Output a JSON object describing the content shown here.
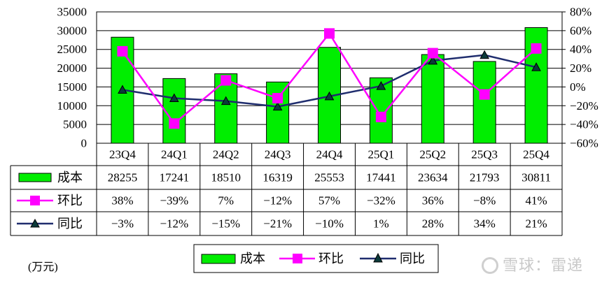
{
  "chart_data": {
    "type": "bar",
    "categories": [
      "23Q4",
      "24Q1",
      "24Q2",
      "24Q3",
      "24Q4",
      "25Q1",
      "25Q2",
      "25Q3",
      "25Q4"
    ],
    "series": [
      {
        "name": "成本",
        "kind": "bar",
        "axis": "left",
        "values": [
          28255,
          17241,
          18510,
          16319,
          25553,
          17441,
          23634,
          21793,
          30811
        ],
        "table": [
          "28255",
          "17241",
          "18510",
          "16319",
          "25553",
          "17441",
          "23634",
          "21793",
          "30811"
        ]
      },
      {
        "name": "环比",
        "kind": "line",
        "axis": "right",
        "values": [
          38,
          -39,
          7,
          -12,
          57,
          -32,
          36,
          -8,
          41
        ],
        "table": [
          "38%",
          "−39%",
          "7%",
          "−12%",
          "57%",
          "−32%",
          "36%",
          "−8%",
          "41%"
        ]
      },
      {
        "name": "同比",
        "kind": "line",
        "axis": "right",
        "values": [
          -3,
          -12,
          -15,
          -21,
          -10,
          1,
          28,
          34,
          21
        ],
        "table": [
          "−3%",
          "−12%",
          "−15%",
          "−21%",
          "−10%",
          "1%",
          "28%",
          "34%",
          "21%"
        ]
      }
    ],
    "y_left": {
      "min": 0,
      "max": 35000,
      "step": 5000,
      "ticks": [
        "0",
        "5000",
        "10000",
        "15000",
        "20000",
        "25000",
        "30000",
        "35000"
      ]
    },
    "y_right": {
      "min": -60,
      "max": 80,
      "step": 20,
      "ticks": [
        "−60%",
        "−40%",
        "−20%",
        "0%",
        "20%",
        "40%",
        "60%",
        "80%"
      ]
    },
    "grid": true,
    "legend": {
      "placement": "bottom",
      "items": [
        "成本",
        "环比",
        "同比"
      ]
    },
    "unit_note": "(万元)"
  },
  "colors": {
    "bar": "#00ee00",
    "huanbi": "#ff00ff",
    "tongbi": "#1f2d6e",
    "grid": "#000000"
  },
  "watermark": "雪球：雷递"
}
